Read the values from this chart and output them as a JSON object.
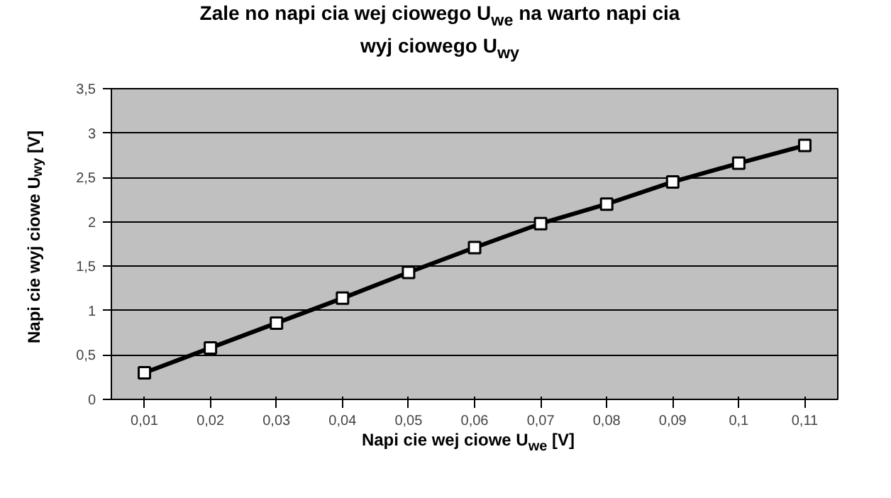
{
  "chart_data": {
    "type": "line",
    "title": "Zale no   napi cia wej ciowego U$_{we}$ na warto   napi cia wyj ciowego U$_{wy}$",
    "xlabel": "Napi cie wej ciowe U$_{we}$ [V]",
    "ylabel": "Napi cie wyj ciowe U$_{wy}$ [V]",
    "categories": [
      "0,01",
      "0,02",
      "0,03",
      "0,04",
      "0,05",
      "0,06",
      "0,07",
      "0,08",
      "0,09",
      "0,1",
      "0,11"
    ],
    "series": [
      {
        "color": "#000000",
        "values": [
          0.3,
          0.58,
          0.86,
          1.14,
          1.43,
          1.71,
          1.98,
          2.2,
          2.45,
          2.66,
          2.86
        ]
      }
    ],
    "ylim": [
      0,
      3.5
    ],
    "yticks": [
      0,
      {
        "value": 0.5,
        "label": "0,5"
      },
      1,
      {
        "value": 1.5,
        "label": "1,5"
      },
      2,
      {
        "value": 2.5,
        "label": "2,5"
      },
      3,
      {
        "value": 3.5,
        "label": "3,5"
      }
    ],
    "grid": "y",
    "marker": "square",
    "line_style": "solid"
  }
}
